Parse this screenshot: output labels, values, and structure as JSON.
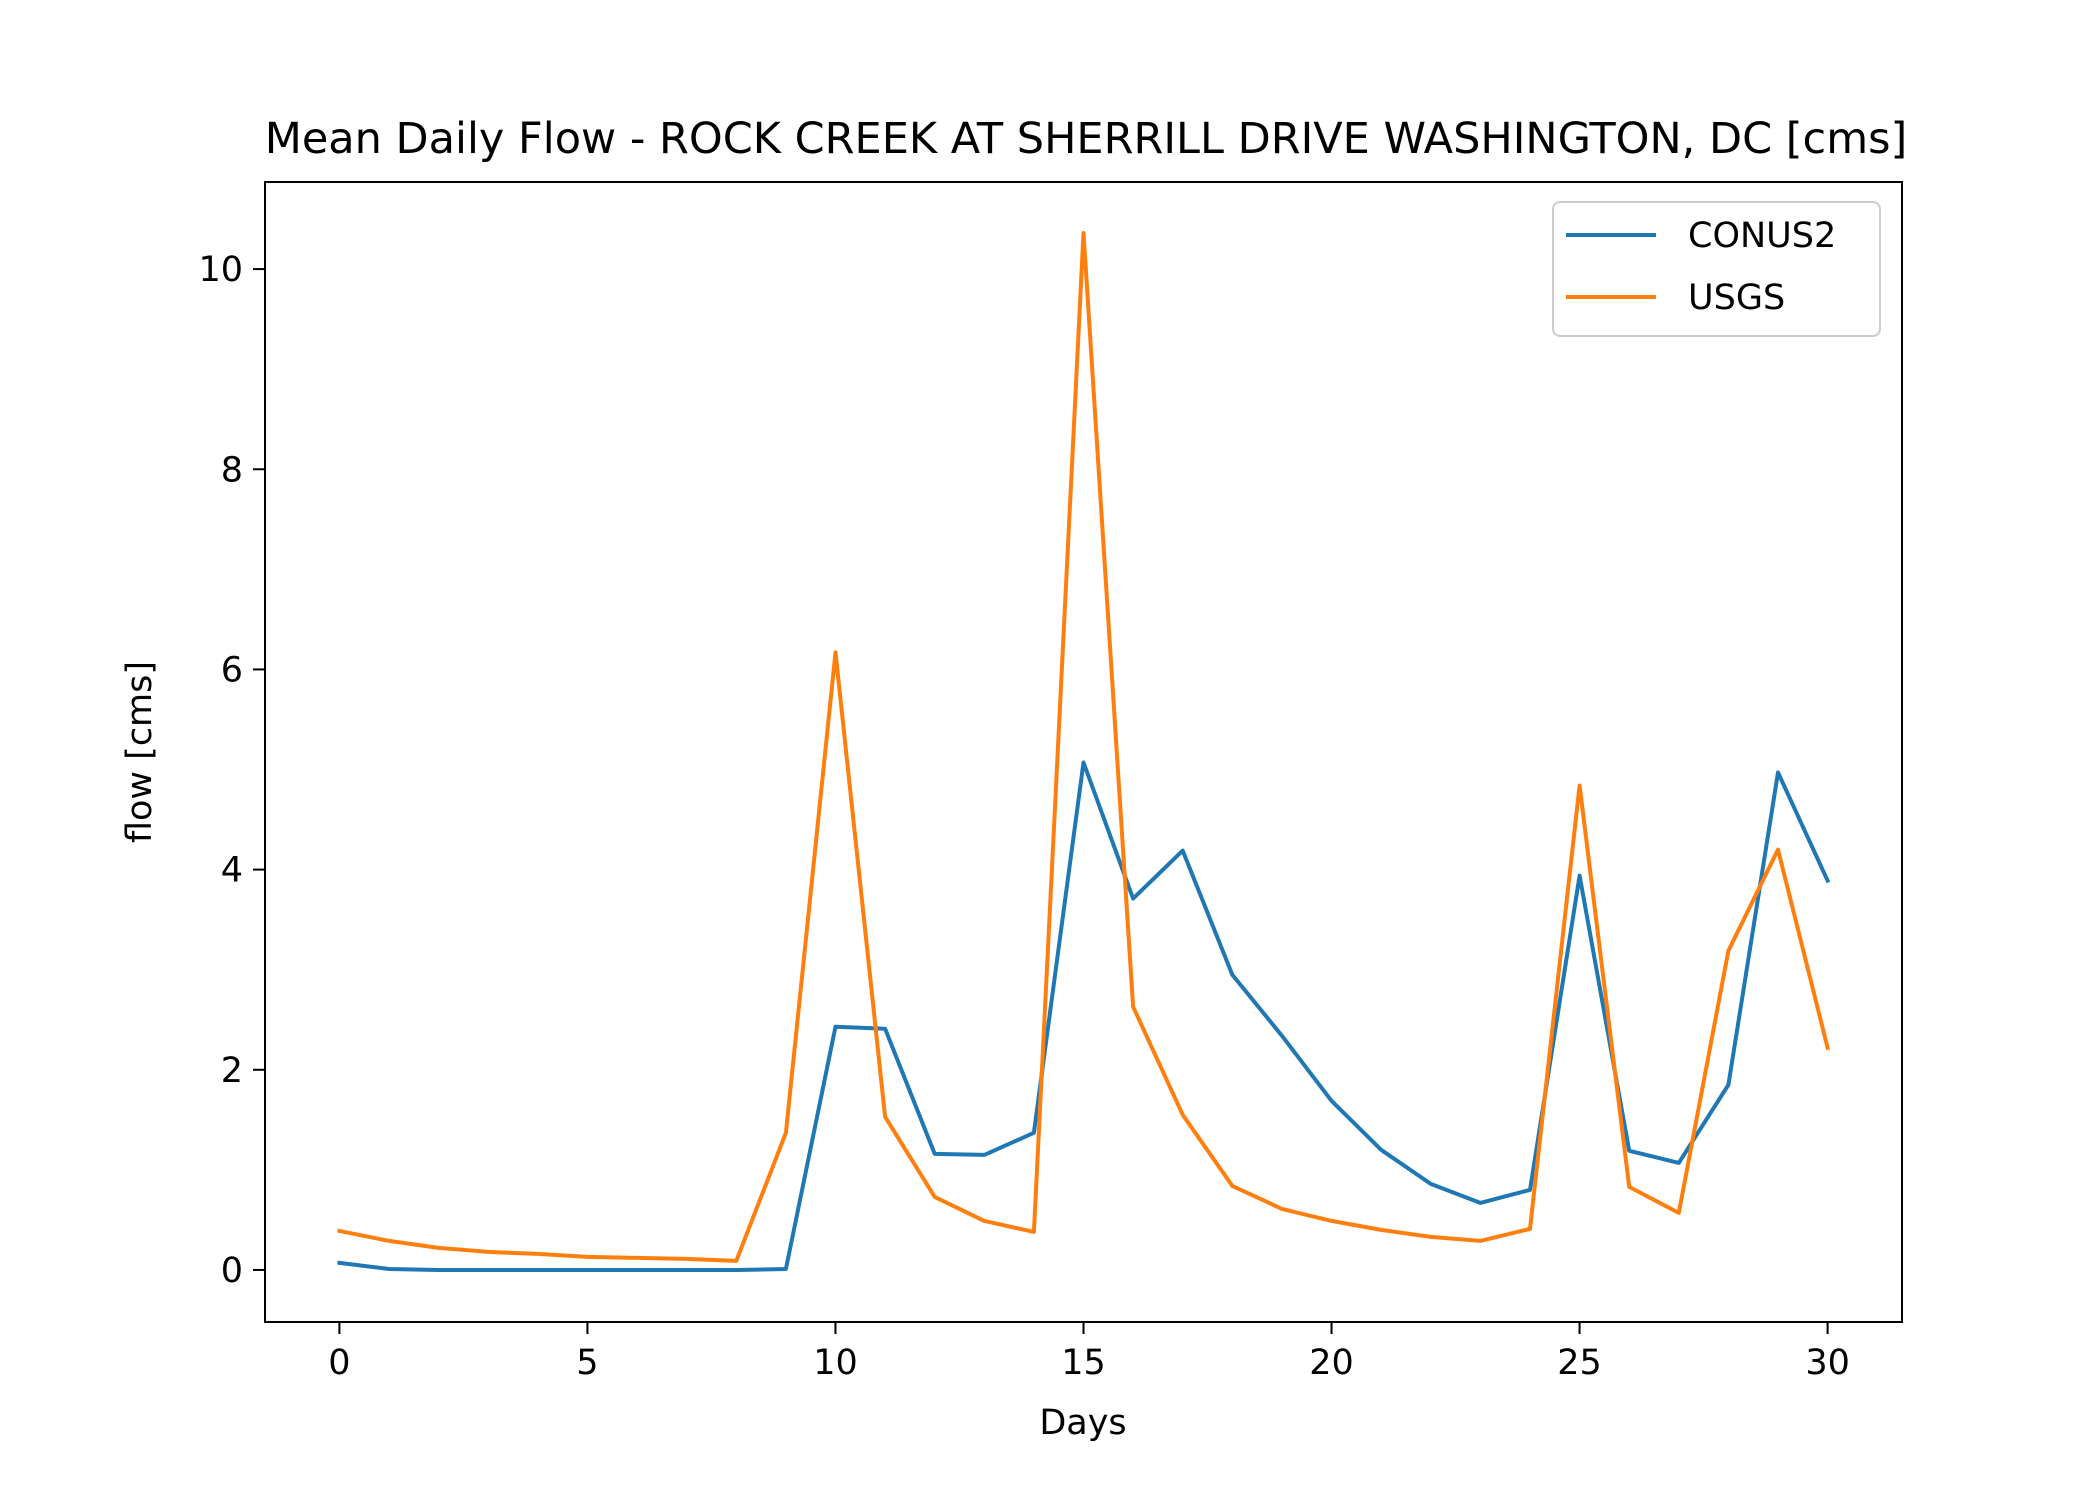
{
  "chart_data": {
    "type": "line",
    "title": "Mean Daily Flow - ROCK CREEK AT SHERRILL DRIVE WASHINGTON, DC [cms]",
    "xlabel": "Days",
    "ylabel": "flow [cms]",
    "xlim": [
      -1.5,
      31.5
    ],
    "ylim": [
      -0.52,
      10.87
    ],
    "xticks": [
      0,
      5,
      10,
      15,
      20,
      25,
      30
    ],
    "yticks": [
      0,
      2,
      4,
      6,
      8,
      10
    ],
    "grid": false,
    "legend": "top-right",
    "x": [
      0,
      1,
      2,
      3,
      4,
      5,
      6,
      7,
      8,
      9,
      10,
      11,
      12,
      13,
      14,
      15,
      16,
      17,
      18,
      19,
      20,
      21,
      22,
      23,
      24,
      25,
      26,
      27,
      28,
      29,
      30
    ],
    "series": [
      {
        "name": "CONUS2",
        "color": "#1f77b4",
        "values": [
          0.07,
          0.01,
          0.0,
          0.0,
          0.0,
          0.0,
          0.0,
          0.0,
          0.0,
          0.01,
          2.43,
          2.41,
          1.16,
          1.15,
          1.37,
          5.07,
          3.71,
          4.19,
          2.95,
          2.34,
          1.69,
          1.2,
          0.86,
          0.67,
          0.8,
          3.94,
          1.19,
          1.07,
          1.85,
          4.97,
          3.89
        ]
      },
      {
        "name": "USGS",
        "color": "#ff7f0e",
        "values": [
          0.39,
          0.29,
          0.22,
          0.18,
          0.16,
          0.13,
          0.12,
          0.11,
          0.09,
          1.37,
          6.17,
          1.53,
          0.73,
          0.49,
          0.38,
          10.36,
          2.63,
          1.55,
          0.84,
          0.61,
          0.49,
          0.4,
          0.33,
          0.29,
          0.41,
          4.84,
          0.83,
          0.57,
          3.19,
          4.2,
          2.22
        ]
      }
    ]
  }
}
